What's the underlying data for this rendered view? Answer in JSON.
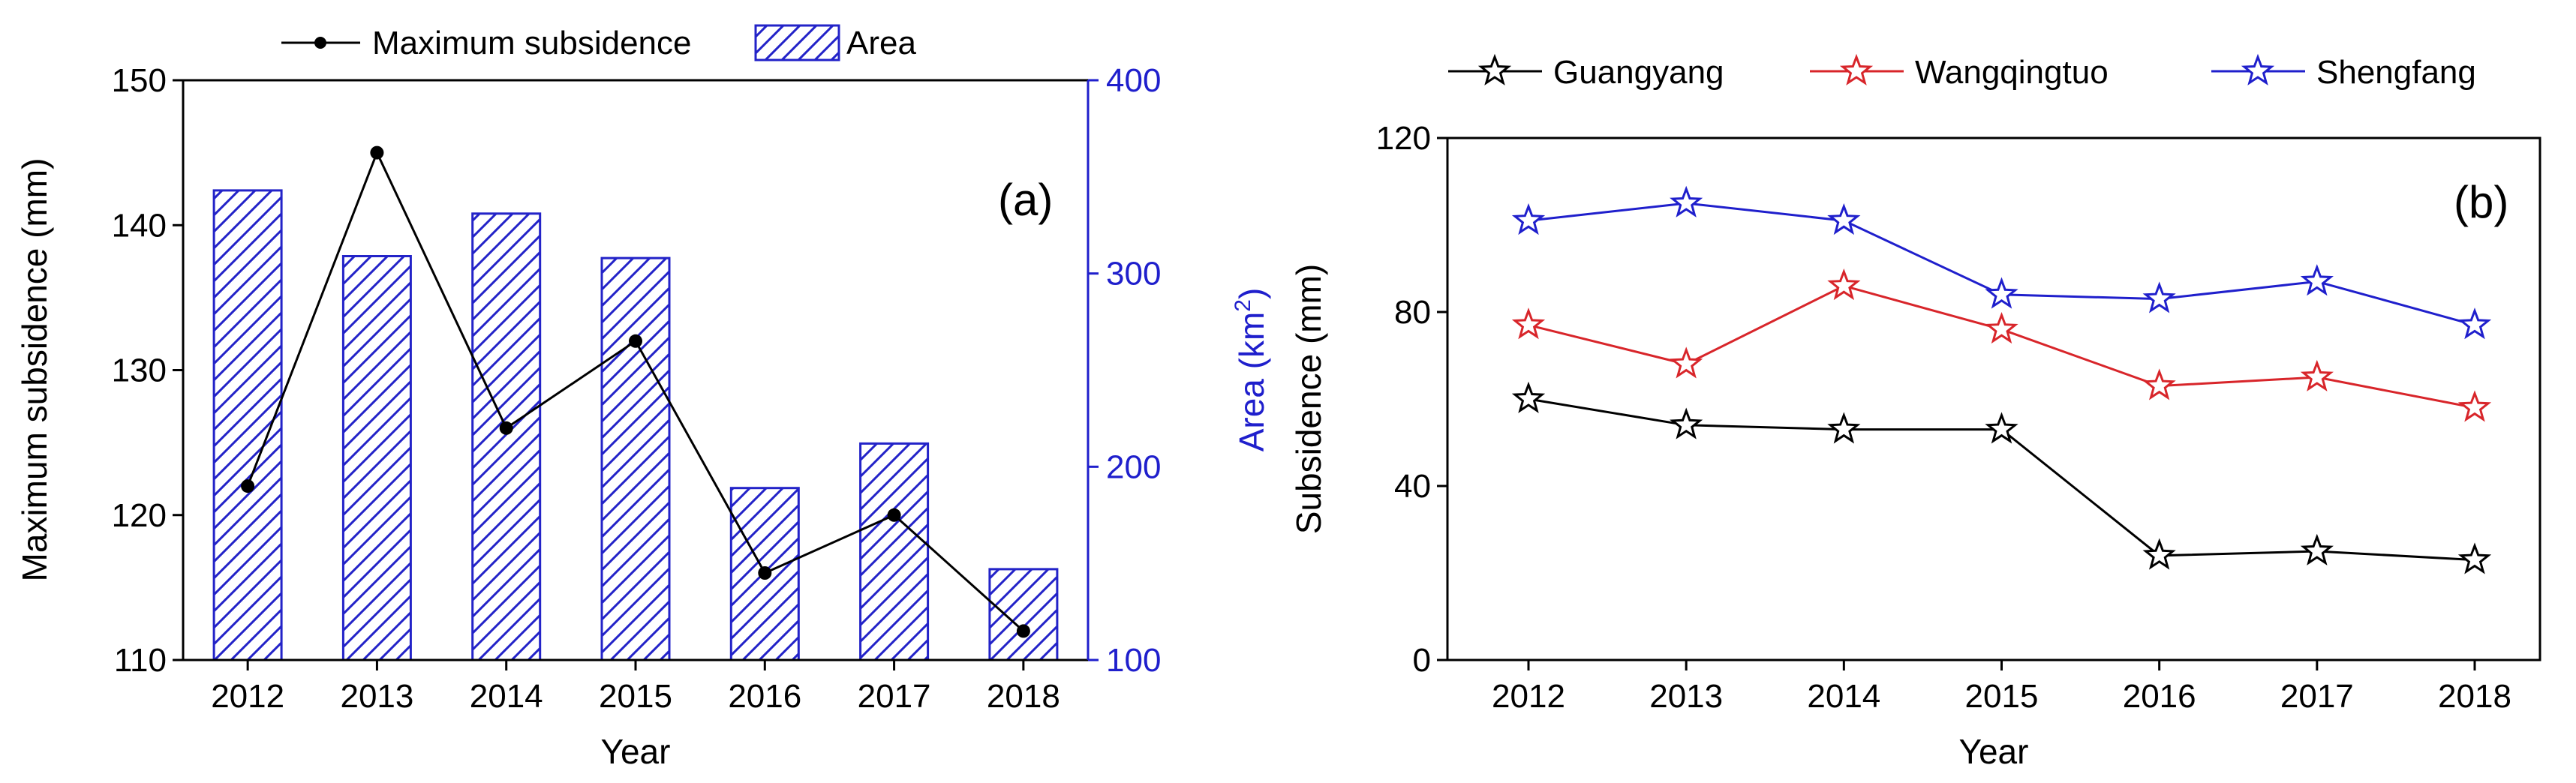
{
  "colors": {
    "black": "#000000",
    "blue": "#1f1fcc",
    "red": "#d8252a",
    "hatch": "#2323c8"
  },
  "chart_data": [
    {
      "id": "a",
      "type": "bar+line",
      "panel_label": "(a)",
      "categories": [
        "2012",
        "2013",
        "2014",
        "2015",
        "2016",
        "2017",
        "2018"
      ],
      "xlabel": "Year",
      "ylabel": "Maximum subsidence (mm)",
      "ylabel2_main": "Area (km",
      "ylabel2_sup": "2",
      "ylabel2_end": ")",
      "ylim": [
        110,
        150
      ],
      "yticks": [
        "110",
        "120",
        "130",
        "140",
        "150"
      ],
      "ylim2": [
        100,
        400
      ],
      "yticks2": [
        "100",
        "200",
        "300",
        "400"
      ],
      "line_series": {
        "name": "Maximum subsidence",
        "values": [
          122,
          145,
          126,
          132,
          116,
          120,
          112
        ]
      },
      "bar_series": {
        "name": "Area",
        "values": [
          343,
          309,
          331,
          308,
          189,
          212,
          147
        ]
      },
      "legend": [
        "Maximum subsidence",
        "Area"
      ]
    },
    {
      "id": "b",
      "type": "line",
      "panel_label": "(b)",
      "categories": [
        "2012",
        "2013",
        "2014",
        "2015",
        "2016",
        "2017",
        "2018"
      ],
      "xlabel": "Year",
      "ylabel": "Subsidence (mm)",
      "ylim": [
        0,
        120
      ],
      "yticks": [
        "0",
        "40",
        "80",
        "120"
      ],
      "series": [
        {
          "name": "Guangyang",
          "color": "#000000",
          "values": [
            60,
            54,
            53,
            53,
            24,
            25,
            23
          ]
        },
        {
          "name": "Wangqingtuo",
          "color": "#d8252a",
          "values": [
            77,
            68,
            86,
            76,
            63,
            65,
            58
          ]
        },
        {
          "name": "Shengfang",
          "color": "#1f1fcc",
          "values": [
            101,
            105,
            101,
            84,
            83,
            87,
            77
          ]
        }
      ]
    }
  ]
}
